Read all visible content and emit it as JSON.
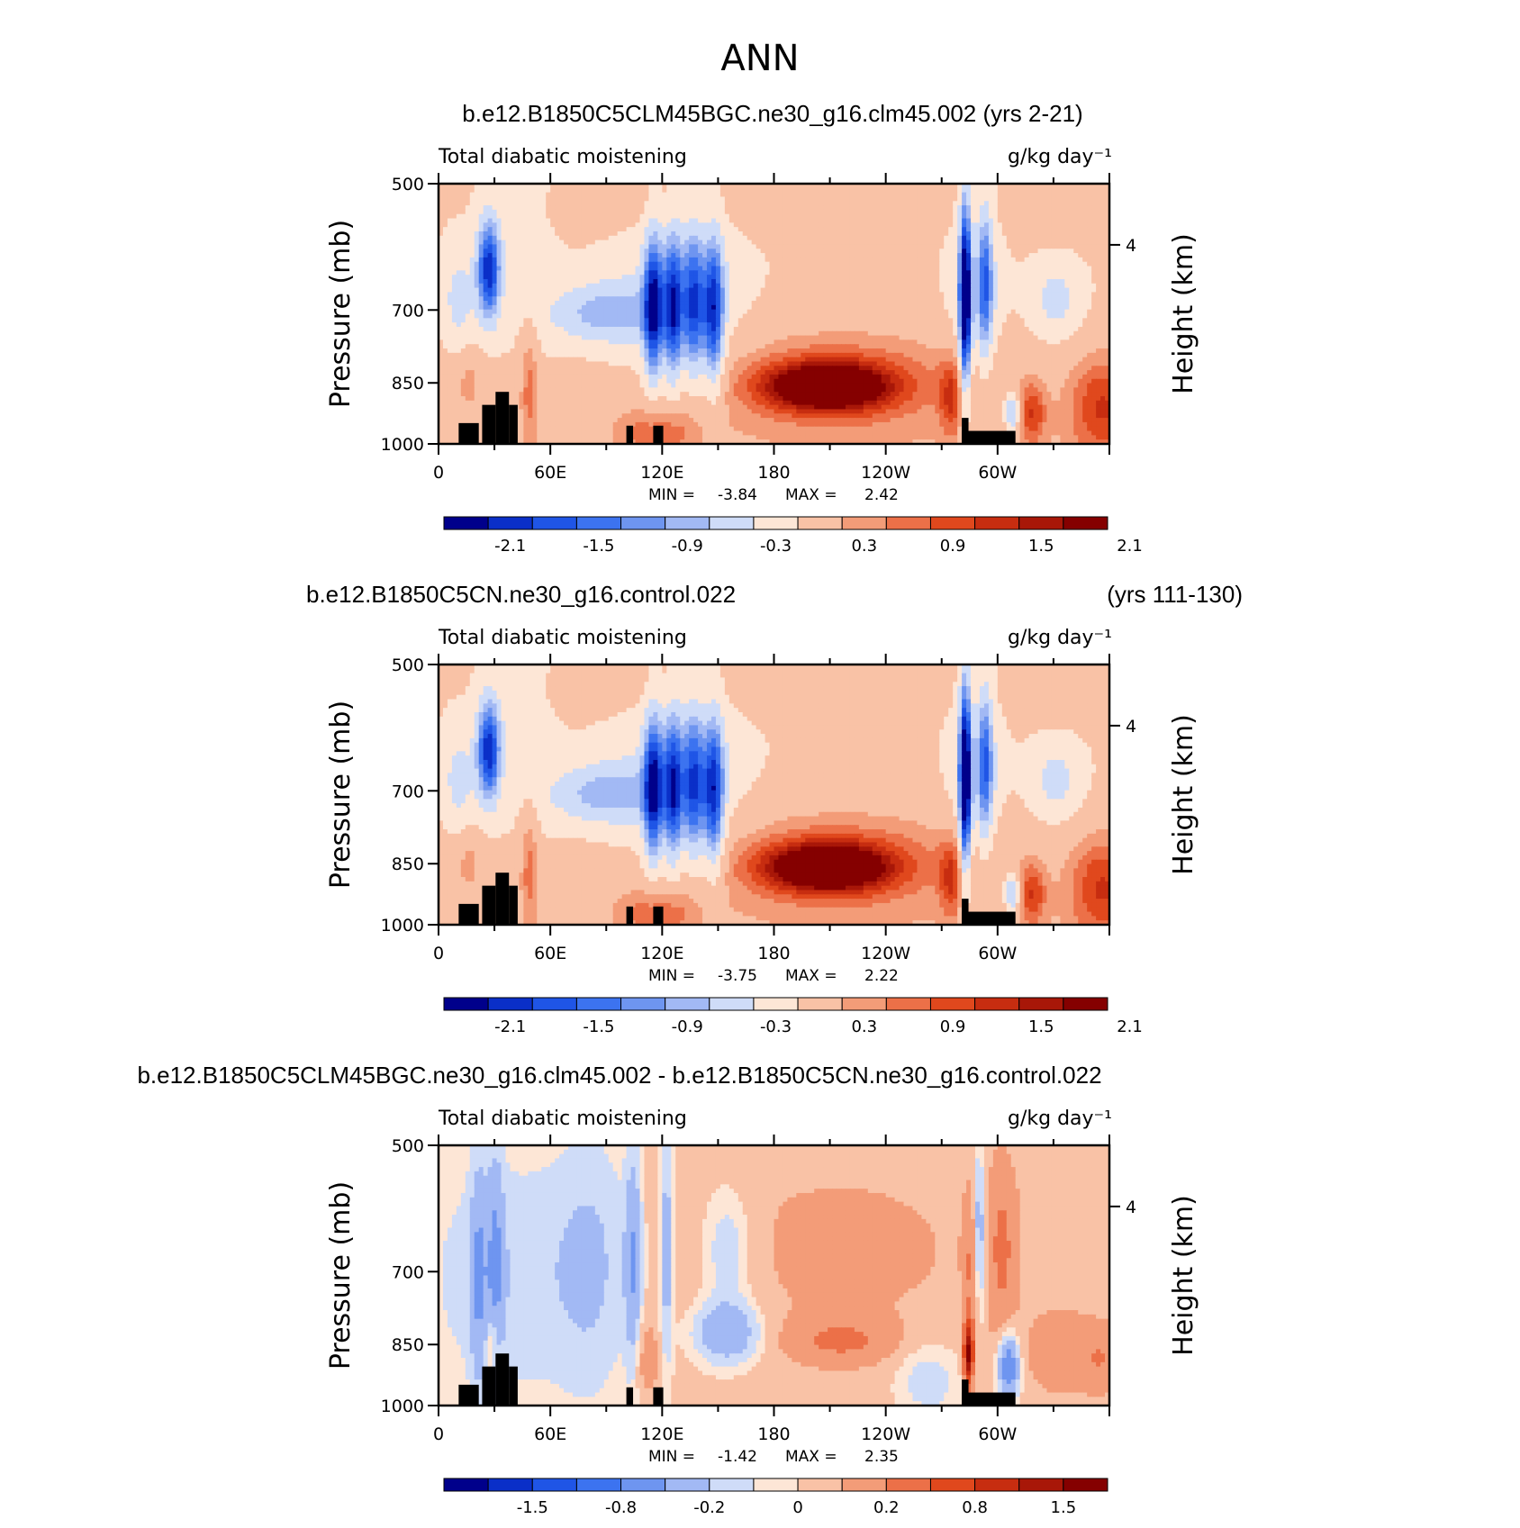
{
  "figure": {
    "title": "ANN"
  },
  "chart_data": [
    {
      "type": "heatmap",
      "title": "b.e12.B1850C5CLM45BGC.ne30_g16.clm45.002 (yrs 2-21)",
      "title_right": "",
      "subtitle_left": "Total diabatic moistening",
      "units": "g/kg day⁻¹",
      "ylabel": "Pressure (mb)",
      "ylabel_right": "Height (km)",
      "yticks": [
        "500",
        "700",
        "850",
        "1000"
      ],
      "yticks_right": [
        "4"
      ],
      "xticks": [
        "0",
        "60E",
        "120E",
        "180",
        "120W",
        "60W"
      ],
      "stats": {
        "min_label": "MIN =",
        "min": "-3.84",
        "max_label": "MAX =",
        "max": "2.42"
      },
      "colorbar_labels": [
        "-2.1",
        "-1.5",
        "-0.9",
        "-0.3",
        "0.3",
        "0.9",
        "1.5",
        "2.1"
      ],
      "colors": [
        "#00008b",
        "#0a2fc8",
        "#1f55e6",
        "#3c73f0",
        "#6e95f0",
        "#a2b9f4",
        "#cfdcf8",
        "#fde6d6",
        "#f9c2a6",
        "#f39c78",
        "#ec7048",
        "#e0481d",
        "#c72d10",
        "#a81708",
        "#850000"
      ],
      "pattern": "control"
    },
    {
      "type": "heatmap",
      "title": "b.e12.B1850C5CN.ne30_g16.control.022",
      "title_right": "(yrs 111-130)",
      "subtitle_left": "Total diabatic moistening",
      "units": "g/kg day⁻¹",
      "ylabel": "Pressure (mb)",
      "ylabel_right": "Height (km)",
      "yticks": [
        "500",
        "700",
        "850",
        "1000"
      ],
      "yticks_right": [
        "4"
      ],
      "xticks": [
        "0",
        "60E",
        "120E",
        "180",
        "120W",
        "60W"
      ],
      "stats": {
        "min_label": "MIN =",
        "min": "-3.75",
        "max_label": "MAX =",
        "max": "2.22"
      },
      "colorbar_labels": [
        "-2.1",
        "-1.5",
        "-0.9",
        "-0.3",
        "0.3",
        "0.9",
        "1.5",
        "2.1"
      ],
      "colors": [
        "#00008b",
        "#0a2fc8",
        "#1f55e6",
        "#3c73f0",
        "#6e95f0",
        "#a2b9f4",
        "#cfdcf8",
        "#fde6d6",
        "#f9c2a6",
        "#f39c78",
        "#ec7048",
        "#e0481d",
        "#c72d10",
        "#a81708",
        "#850000"
      ],
      "pattern": "control"
    },
    {
      "type": "heatmap",
      "title": "b.e12.B1850C5CLM45BGC.ne30_g16.clm45.002 - b.e12.B1850C5CN.ne30_g16.control.022",
      "title_right": "",
      "subtitle_left": "Total diabatic moistening",
      "units": "g/kg day⁻¹",
      "ylabel": "Pressure (mb)",
      "ylabel_right": "Height (km)",
      "yticks": [
        "500",
        "700",
        "850",
        "1000"
      ],
      "yticks_right": [
        "4"
      ],
      "xticks": [
        "0",
        "60E",
        "120E",
        "180",
        "120W",
        "60W"
      ],
      "stats": {
        "min_label": "MIN =",
        "min": "-1.42",
        "max_label": "MAX =",
        "max": "2.35"
      },
      "colorbar_labels": [
        "-1.5",
        "-0.8",
        "-0.2",
        "0",
        "0.2",
        "0.8",
        "1.5"
      ],
      "colors": [
        "#00008b",
        "#0a2fc8",
        "#1f55e6",
        "#3c73f0",
        "#6e95f0",
        "#a2b9f4",
        "#cfdcf8",
        "#fde6d6",
        "#f9c2a6",
        "#f39c78",
        "#ec7048",
        "#e0481d",
        "#c72d10",
        "#a81708",
        "#850000"
      ],
      "pattern": "diff"
    }
  ]
}
